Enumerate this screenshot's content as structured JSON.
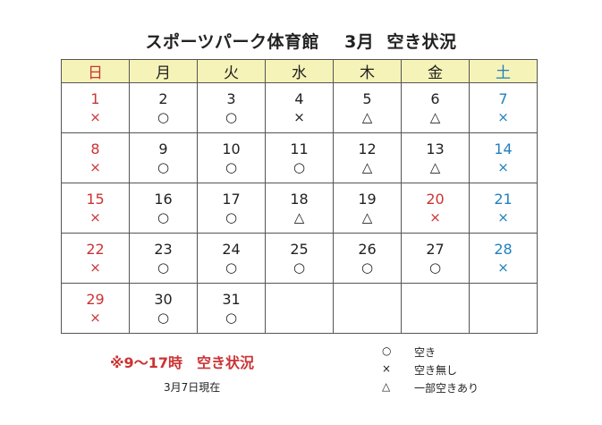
{
  "title": {
    "facility": "スポーツパーク体育館",
    "month": "3月",
    "status": "空き状況"
  },
  "weekdays": [
    "日",
    "月",
    "火",
    "水",
    "木",
    "金",
    "土"
  ],
  "colors": {
    "sunday": "#cc3333",
    "saturday": "#1f7fbf",
    "header_bg": "#f6f3b8"
  },
  "weeks": [
    [
      {
        "day": "1",
        "mark": "×"
      },
      {
        "day": "2",
        "mark": "○"
      },
      {
        "day": "3",
        "mark": "○"
      },
      {
        "day": "4",
        "mark": "×"
      },
      {
        "day": "5",
        "mark": "△"
      },
      {
        "day": "6",
        "mark": "△"
      },
      {
        "day": "7",
        "mark": "×"
      }
    ],
    [
      {
        "day": "8",
        "mark": "×"
      },
      {
        "day": "9",
        "mark": "○"
      },
      {
        "day": "10",
        "mark": "○"
      },
      {
        "day": "11",
        "mark": "○"
      },
      {
        "day": "12",
        "mark": "△"
      },
      {
        "day": "13",
        "mark": "△"
      },
      {
        "day": "14",
        "mark": "×"
      }
    ],
    [
      {
        "day": "15",
        "mark": "×"
      },
      {
        "day": "16",
        "mark": "○"
      },
      {
        "day": "17",
        "mark": "○"
      },
      {
        "day": "18",
        "mark": "△"
      },
      {
        "day": "19",
        "mark": "△"
      },
      {
        "day": "20",
        "mark": "×",
        "holiday": true
      },
      {
        "day": "21",
        "mark": "×"
      }
    ],
    [
      {
        "day": "22",
        "mark": "×"
      },
      {
        "day": "23",
        "mark": "○"
      },
      {
        "day": "24",
        "mark": "○"
      },
      {
        "day": "25",
        "mark": "○"
      },
      {
        "day": "26",
        "mark": "○"
      },
      {
        "day": "27",
        "mark": "○"
      },
      {
        "day": "28",
        "mark": "×"
      }
    ],
    [
      {
        "day": "29",
        "mark": "×"
      },
      {
        "day": "30",
        "mark": "○"
      },
      {
        "day": "31",
        "mark": "○"
      },
      null,
      null,
      null,
      null
    ]
  ],
  "note": "※9～17時　空き状況",
  "as_of": "3月7日現在",
  "legend": [
    {
      "symbol": "○",
      "label": "空き"
    },
    {
      "symbol": "×",
      "label": "空き無し"
    },
    {
      "symbol": "△",
      "label": "一部空きあり"
    }
  ]
}
